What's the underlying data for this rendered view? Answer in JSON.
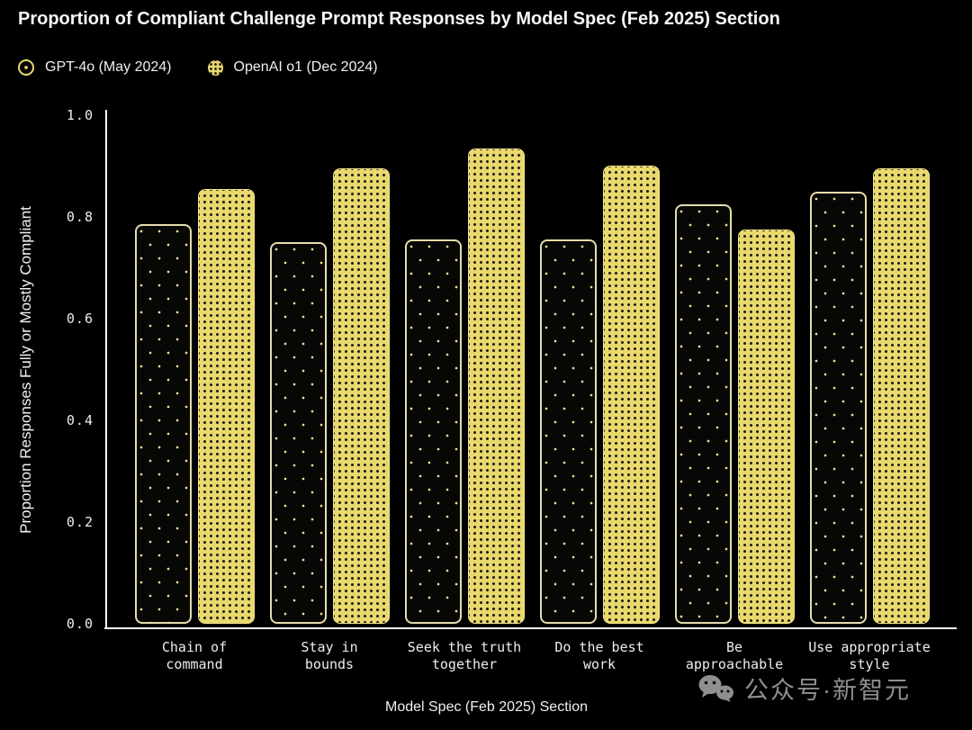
{
  "title": "Proportion of Compliant Challenge Prompt Responses by Model Spec (Feb 2025) Section",
  "legend": {
    "items": [
      {
        "label": "GPT-4o (May 2024)",
        "icon": "outlined-dotted-circle"
      },
      {
        "label": "OpenAI o1 (Dec 2024)",
        "icon": "filled-dotted-circle"
      }
    ]
  },
  "chart_data": {
    "type": "bar",
    "title": "Proportion of Compliant Challenge Prompt Responses by Model Spec (Feb 2025) Section",
    "categories": [
      "Chain of command",
      "Stay in bounds",
      "Seek the truth together",
      "Do the best work",
      "Be approachable",
      "Use appropriate style"
    ],
    "category_lines": [
      [
        "Chain of",
        "command"
      ],
      [
        "Stay in",
        "bounds"
      ],
      [
        "Seek the truth",
        "together"
      ],
      [
        "Do the best",
        "work"
      ],
      [
        "Be",
        "approachable"
      ],
      [
        "Use appropriate",
        "style"
      ]
    ],
    "series": [
      {
        "name": "GPT-4o (May 2024)",
        "style": "dark-dotted",
        "values": [
          0.785,
          0.75,
          0.755,
          0.755,
          0.825,
          0.85
        ]
      },
      {
        "name": "OpenAI o1 (Dec 2024)",
        "style": "yellow-dotted",
        "values": [
          0.855,
          0.895,
          0.935,
          0.9,
          0.775,
          0.895
        ]
      }
    ],
    "xlabel": "Model Spec (Feb 2025) Section",
    "ylabel": "Proportion Responses Fully or Mostly Compliant",
    "ylim": [
      0.0,
      1.0
    ],
    "yticks": [
      "1.0",
      "0.8",
      "0.6",
      "0.4",
      "0.2",
      "0.0"
    ],
    "grid": false,
    "legend_position": "top-left",
    "background": "#000000"
  },
  "colors": {
    "background": "#000000",
    "accent_yellow": "#e9d96d",
    "dark_bar_fill": "#070705",
    "dark_bar_border": "#e5dcae",
    "axis": "#ffffff",
    "text": "#f2f2f2",
    "watermark": "#8f8f8f"
  },
  "watermark": {
    "icon": "wechat-icon",
    "text": "公众号·新智元"
  }
}
